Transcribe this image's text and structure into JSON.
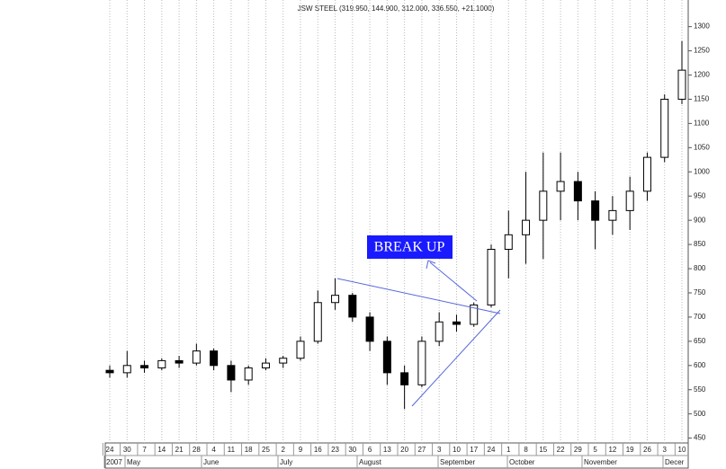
{
  "chart_data": {
    "type": "candlestick",
    "title": "JSW STEEL (319.950, 144.900, 312.000, 336.550, +21.1000)",
    "annotation": "BREAK UP",
    "categories": [
      "24",
      "30",
      "7",
      "14",
      "21",
      "28",
      "4",
      "11",
      "18",
      "25",
      "2",
      "9",
      "16",
      "23",
      "30",
      "6",
      "13",
      "20",
      "27",
      "3",
      "10",
      "17",
      "24",
      "1",
      "8",
      "15",
      "22",
      "29",
      "5",
      "12",
      "19",
      "26",
      "3",
      "10"
    ],
    "period_labels": [
      "2007",
      "May",
      "June",
      "July",
      "August",
      "September",
      "October",
      "November",
      "Decer"
    ],
    "open": [
      590,
      585,
      600,
      595,
      610,
      605,
      630,
      600,
      570,
      595,
      605,
      615,
      650,
      730,
      745,
      700,
      650,
      585,
      560,
      650,
      690,
      685,
      725,
      840,
      870,
      900,
      960,
      980,
      940,
      900,
      920,
      960,
      1030,
      1150
    ],
    "high": [
      600,
      630,
      610,
      615,
      620,
      645,
      635,
      610,
      600,
      615,
      620,
      660,
      755,
      780,
      750,
      710,
      660,
      600,
      660,
      710,
      705,
      730,
      850,
      920,
      1000,
      1040,
      1040,
      1000,
      960,
      950,
      990,
      1040,
      1160,
      1270
    ],
    "low": [
      575,
      575,
      585,
      590,
      595,
      600,
      590,
      545,
      560,
      590,
      595,
      610,
      645,
      715,
      690,
      630,
      560,
      510,
      555,
      640,
      670,
      680,
      720,
      780,
      810,
      820,
      900,
      900,
      840,
      870,
      880,
      940,
      1020,
      1140
    ],
    "close": [
      585,
      600,
      595,
      610,
      605,
      630,
      600,
      570,
      595,
      605,
      615,
      650,
      730,
      745,
      700,
      650,
      585,
      560,
      650,
      690,
      685,
      725,
      840,
      870,
      900,
      960,
      980,
      940,
      900,
      920,
      960,
      1030,
      1150,
      1210
    ],
    "up_color": "#ffffff",
    "down_color": "#000000",
    "ylim": [
      440,
      1355
    ],
    "yticks": [
      450,
      500,
      550,
      600,
      650,
      700,
      750,
      800,
      850,
      900,
      950,
      1000,
      1050,
      1100,
      1150,
      1200,
      1250,
      1300
    ],
    "grid": true
  }
}
